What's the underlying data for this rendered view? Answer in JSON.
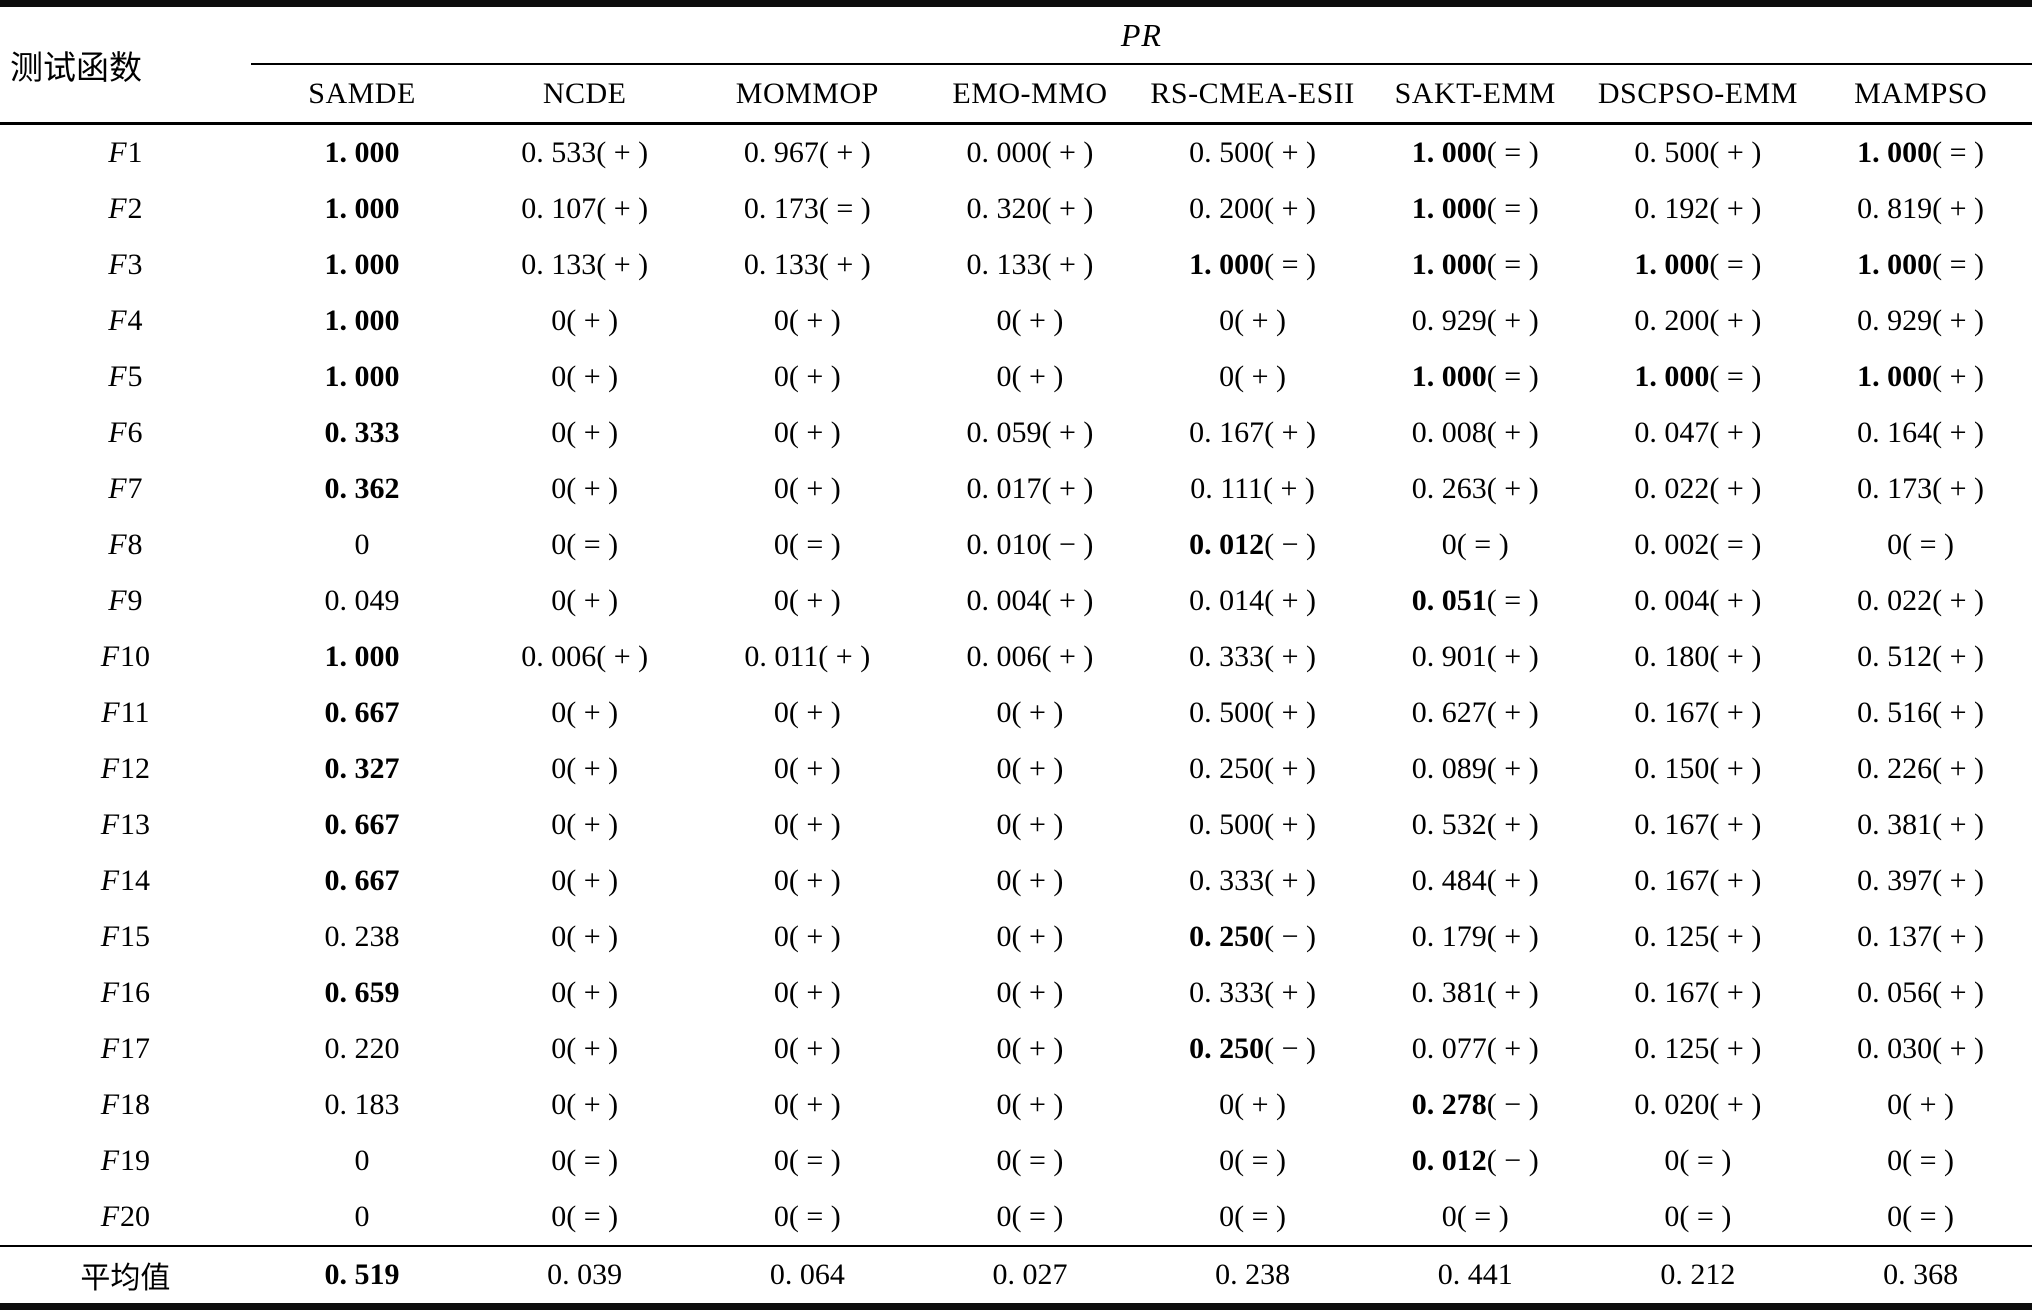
{
  "table": {
    "corner_label": "测试函数",
    "group_header": "PR",
    "columns": [
      "SAMDE",
      "NCDE",
      "MOMMOP",
      "EMO-MMO",
      "RS-CMEA-ESII",
      "SAKT-EMM",
      "DSCPSO-EMM",
      "MAMPSO"
    ],
    "rows": [
      {
        "label": "F1",
        "cells": [
          {
            "t": "1. 000",
            "b": true
          },
          {
            "t": "0. 533( + )"
          },
          {
            "t": "0. 967( + )"
          },
          {
            "t": "0. 000( + )"
          },
          {
            "t": "0. 500( + )"
          },
          {
            "t": "1. 000( = )",
            "b": true
          },
          {
            "t": "0. 500( + )"
          },
          {
            "t": "1. 000( = )",
            "b": true
          }
        ]
      },
      {
        "label": "F2",
        "cells": [
          {
            "t": "1. 000",
            "b": true
          },
          {
            "t": "0. 107( + )"
          },
          {
            "t": "0. 173( = )"
          },
          {
            "t": "0. 320( + )"
          },
          {
            "t": "0. 200( + )"
          },
          {
            "t": "1. 000( = )",
            "b": true
          },
          {
            "t": "0. 192( + )"
          },
          {
            "t": "0. 819( + )"
          }
        ]
      },
      {
        "label": "F3",
        "cells": [
          {
            "t": "1. 000",
            "b": true
          },
          {
            "t": "0. 133( + )"
          },
          {
            "t": "0. 133( + )"
          },
          {
            "t": "0. 133( + )"
          },
          {
            "t": "1. 000( = )",
            "b": true
          },
          {
            "t": "1. 000( = )",
            "b": true
          },
          {
            "t": "1. 000( = )",
            "b": true
          },
          {
            "t": "1. 000( = )",
            "b": true
          }
        ]
      },
      {
        "label": "F4",
        "cells": [
          {
            "t": "1. 000",
            "b": true
          },
          {
            "t": "0( + )"
          },
          {
            "t": "0( + )"
          },
          {
            "t": "0( + )"
          },
          {
            "t": "0( + )"
          },
          {
            "t": "0. 929( + )"
          },
          {
            "t": "0. 200( + )"
          },
          {
            "t": "0. 929( + )"
          }
        ]
      },
      {
        "label": "F5",
        "cells": [
          {
            "t": "1. 000",
            "b": true
          },
          {
            "t": "0( + )"
          },
          {
            "t": "0( + )"
          },
          {
            "t": "0( + )"
          },
          {
            "t": "0( + )"
          },
          {
            "t": "1. 000( = )",
            "b": true
          },
          {
            "t": "1. 000( = )",
            "b": true
          },
          {
            "t": "1. 000( + )",
            "b": true
          }
        ]
      },
      {
        "label": "F6",
        "cells": [
          {
            "t": "0. 333",
            "b": true
          },
          {
            "t": "0( + )"
          },
          {
            "t": "0( + )"
          },
          {
            "t": "0. 059( + )"
          },
          {
            "t": "0. 167( + )"
          },
          {
            "t": "0. 008( + )"
          },
          {
            "t": "0. 047( + )"
          },
          {
            "t": "0. 164( + )"
          }
        ]
      },
      {
        "label": "F7",
        "cells": [
          {
            "t": "0. 362",
            "b": true
          },
          {
            "t": "0( + )"
          },
          {
            "t": "0( + )"
          },
          {
            "t": "0. 017( + )"
          },
          {
            "t": "0. 111( + )"
          },
          {
            "t": "0. 263( + )"
          },
          {
            "t": "0. 022( + )"
          },
          {
            "t": "0. 173( + )"
          }
        ]
      },
      {
        "label": "F8",
        "cells": [
          {
            "t": "0"
          },
          {
            "t": "0( = )"
          },
          {
            "t": "0( = )"
          },
          {
            "t": "0. 010( − )"
          },
          {
            "t": "0. 012( − )",
            "b": true
          },
          {
            "t": "0( = )"
          },
          {
            "t": "0. 002( = )"
          },
          {
            "t": "0( = )"
          }
        ]
      },
      {
        "label": "F9",
        "cells": [
          {
            "t": "0. 049"
          },
          {
            "t": "0( + )"
          },
          {
            "t": "0( + )"
          },
          {
            "t": "0. 004( + )"
          },
          {
            "t": "0. 014( + )"
          },
          {
            "t": "0. 051( = )",
            "b": true
          },
          {
            "t": "0. 004( + )"
          },
          {
            "t": "0. 022( + )"
          }
        ]
      },
      {
        "label": "F10",
        "cells": [
          {
            "t": "1. 000",
            "b": true
          },
          {
            "t": "0. 006( + )"
          },
          {
            "t": "0. 011( + )"
          },
          {
            "t": "0. 006( + )"
          },
          {
            "t": "0. 333( + )"
          },
          {
            "t": "0. 901( + )"
          },
          {
            "t": "0. 180( + )"
          },
          {
            "t": "0. 512( + )"
          }
        ]
      },
      {
        "label": "F11",
        "cells": [
          {
            "t": "0. 667",
            "b": true
          },
          {
            "t": "0( + )"
          },
          {
            "t": "0( + )"
          },
          {
            "t": "0( + )"
          },
          {
            "t": "0. 500( + )"
          },
          {
            "t": "0. 627( + )"
          },
          {
            "t": "0. 167( + )"
          },
          {
            "t": "0. 516( + )"
          }
        ]
      },
      {
        "label": "F12",
        "cells": [
          {
            "t": "0. 327",
            "b": true
          },
          {
            "t": "0( + )"
          },
          {
            "t": "0( + )"
          },
          {
            "t": "0( + )"
          },
          {
            "t": "0. 250( + )"
          },
          {
            "t": "0. 089( + )"
          },
          {
            "t": "0. 150( + )"
          },
          {
            "t": "0. 226( + )"
          }
        ]
      },
      {
        "label": "F13",
        "cells": [
          {
            "t": "0. 667",
            "b": true
          },
          {
            "t": "0( + )"
          },
          {
            "t": "0( + )"
          },
          {
            "t": "0( + )"
          },
          {
            "t": "0. 500( + )"
          },
          {
            "t": "0. 532( + )"
          },
          {
            "t": "0. 167( + )"
          },
          {
            "t": "0. 381( + )"
          }
        ]
      },
      {
        "label": "F14",
        "cells": [
          {
            "t": "0. 667",
            "b": true
          },
          {
            "t": "0( + )"
          },
          {
            "t": "0( + )"
          },
          {
            "t": "0( + )"
          },
          {
            "t": "0. 333( + )"
          },
          {
            "t": "0. 484( + )"
          },
          {
            "t": "0. 167( + )"
          },
          {
            "t": "0. 397( + )"
          }
        ]
      },
      {
        "label": "F15",
        "cells": [
          {
            "t": "0. 238"
          },
          {
            "t": "0( + )"
          },
          {
            "t": "0( + )"
          },
          {
            "t": "0( + )"
          },
          {
            "t": "0. 250( − )",
            "b": true
          },
          {
            "t": "0. 179( + )"
          },
          {
            "t": "0. 125( + )"
          },
          {
            "t": "0. 137( + )"
          }
        ]
      },
      {
        "label": "F16",
        "cells": [
          {
            "t": "0. 659",
            "b": true
          },
          {
            "t": "0( + )"
          },
          {
            "t": "0( + )"
          },
          {
            "t": "0( + )"
          },
          {
            "t": "0. 333( + )"
          },
          {
            "t": "0. 381( + )"
          },
          {
            "t": "0. 167( + )"
          },
          {
            "t": "0. 056( + )"
          }
        ]
      },
      {
        "label": "F17",
        "cells": [
          {
            "t": "0. 220"
          },
          {
            "t": "0( + )"
          },
          {
            "t": "0( + )"
          },
          {
            "t": "0( + )"
          },
          {
            "t": "0. 250( − )",
            "b": true
          },
          {
            "t": "0. 077( + )"
          },
          {
            "t": "0. 125( + )"
          },
          {
            "t": "0. 030( + )"
          }
        ]
      },
      {
        "label": "F18",
        "cells": [
          {
            "t": "0. 183"
          },
          {
            "t": "0( + )"
          },
          {
            "t": "0( + )"
          },
          {
            "t": "0( + )"
          },
          {
            "t": "0( + )"
          },
          {
            "t": "0. 278( − )",
            "b": true
          },
          {
            "t": "0. 020( + )"
          },
          {
            "t": "0( + )"
          }
        ]
      },
      {
        "label": "F19",
        "cells": [
          {
            "t": "0"
          },
          {
            "t": "0( = )"
          },
          {
            "t": "0( = )"
          },
          {
            "t": "0( = )"
          },
          {
            "t": "0( = )"
          },
          {
            "t": "0. 012( − )",
            "b": true
          },
          {
            "t": "0( = )"
          },
          {
            "t": "0( = )"
          }
        ]
      },
      {
        "label": "F20",
        "cells": [
          {
            "t": "0"
          },
          {
            "t": "0( = )"
          },
          {
            "t": "0( = )"
          },
          {
            "t": "0( = )"
          },
          {
            "t": "0( = )"
          },
          {
            "t": "0( = )"
          },
          {
            "t": "0( = )"
          },
          {
            "t": "0( = )"
          }
        ]
      }
    ],
    "summary_row": {
      "label": "平均值",
      "cells": [
        {
          "t": "0. 519",
          "b": true
        },
        {
          "t": "0. 039"
        },
        {
          "t": "0. 064"
        },
        {
          "t": "0. 027"
        },
        {
          "t": "0. 238"
        },
        {
          "t": "0. 441"
        },
        {
          "t": "0. 212"
        },
        {
          "t": "0. 368"
        }
      ]
    }
  }
}
